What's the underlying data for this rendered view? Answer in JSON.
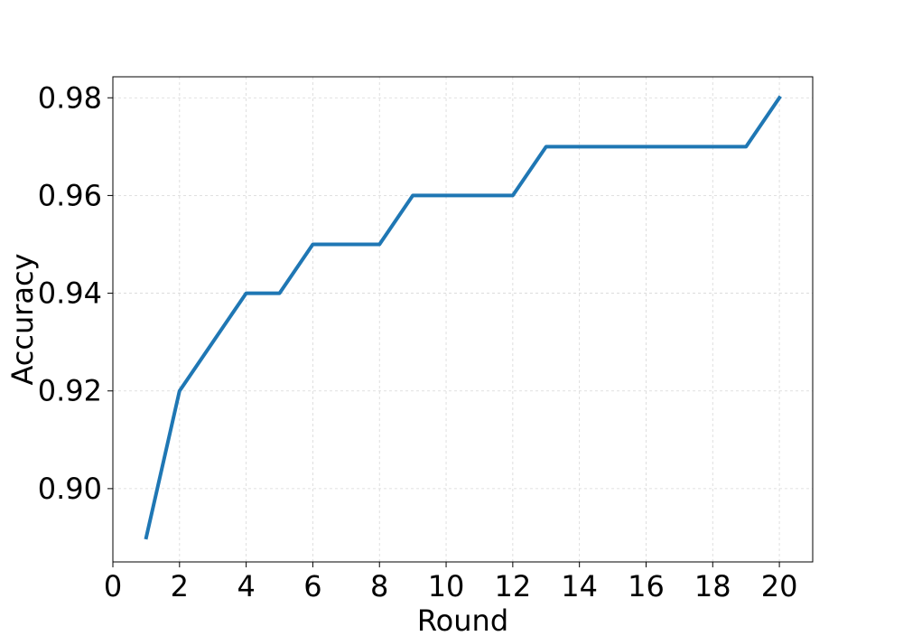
{
  "chart_data": {
    "type": "line",
    "title": "",
    "xlabel": "Round",
    "ylabel": "Accuracy",
    "xlim": [
      0,
      21
    ],
    "ylim": [
      0.885,
      0.9843
    ],
    "x_ticks": [
      0,
      2,
      4,
      6,
      8,
      10,
      12,
      14,
      16,
      18,
      20
    ],
    "y_ticks": [
      0.9,
      0.92,
      0.94,
      0.96,
      0.98
    ],
    "x_tick_labels": [
      "0",
      "2",
      "4",
      "6",
      "8",
      "10",
      "12",
      "14",
      "16",
      "18",
      "20"
    ],
    "y_tick_labels": [
      "0.90",
      "0.92",
      "0.94",
      "0.96",
      "0.98"
    ],
    "grid": true,
    "series": [
      {
        "color": "#1f77b4",
        "x": [
          1,
          2,
          3,
          4,
          5,
          6,
          7,
          8,
          9,
          10,
          11,
          12,
          13,
          14,
          15,
          16,
          17,
          18,
          19,
          20
        ],
        "y": [
          0.89,
          0.92,
          0.93,
          0.94,
          0.94,
          0.95,
          0.95,
          0.95,
          0.96,
          0.96,
          0.96,
          0.96,
          0.97,
          0.97,
          0.97,
          0.97,
          0.97,
          0.97,
          0.97,
          0.98
        ]
      }
    ]
  }
}
